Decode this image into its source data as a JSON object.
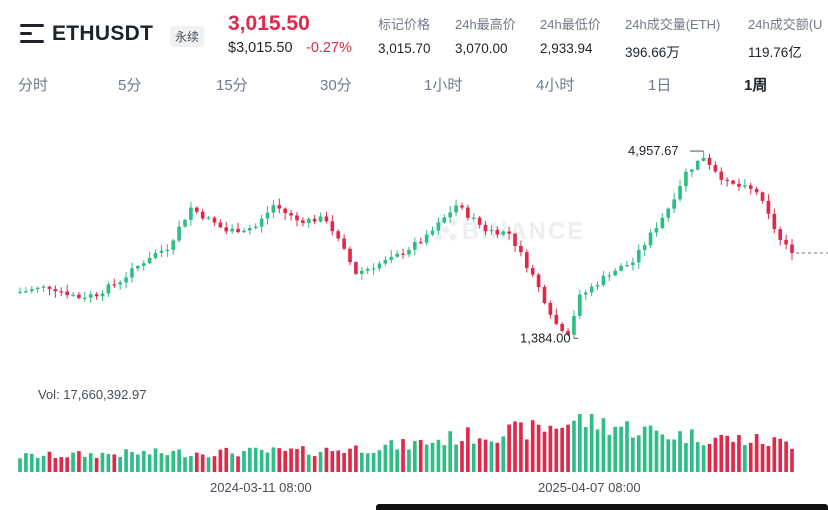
{
  "header": {
    "symbol": "ETHUSDT",
    "contract_badge": "永续",
    "last_price": "3,015.50",
    "usd_price": "$3,015.50",
    "change_pct": "-0.27%",
    "stats": [
      {
        "label": "标记价格",
        "value": "3,015.70"
      },
      {
        "label": "24h最高价",
        "value": "3,070.00"
      },
      {
        "label": "24h最低价",
        "value": "2,933.94"
      },
      {
        "label": "24h成交量(ETH)",
        "value": "396.66万"
      },
      {
        "label": "24h成交额(U",
        "value": "119.76亿"
      }
    ]
  },
  "interval_tabs": [
    "分时",
    "5分",
    "15分",
    "30分",
    "1小时",
    "4小时",
    "1日",
    "1周"
  ],
  "active_tab": "1周",
  "colors": {
    "up": "#2ebd85",
    "down": "#e0294a",
    "text": "#1e2329",
    "muted": "#707a8a"
  },
  "chart_data": {
    "type": "candlestick",
    "symbol": "ETHUSDT",
    "interval": "1周",
    "volume_label": "Vol: 17,660,392.97",
    "max_label": "4,957.67",
    "min_label": "1,384.00",
    "x_ticks": [
      "2024-03-11 08:00",
      "2025-04-07 08:00"
    ],
    "watermark": "BINANCE",
    "ylim": [
      1000,
      5400
    ],
    "anchors": [
      [
        0,
        2300
      ],
      [
        5,
        2390
      ],
      [
        10,
        2200
      ],
      [
        13,
        2260
      ],
      [
        17,
        2500
      ],
      [
        22,
        2950
      ],
      [
        25,
        3120
      ],
      [
        29,
        3850
      ],
      [
        35,
        3420
      ],
      [
        40,
        3500
      ],
      [
        43,
        3900
      ],
      [
        47,
        3620
      ],
      [
        52,
        3640
      ],
      [
        57,
        2650
      ],
      [
        63,
        2900
      ],
      [
        69,
        3300
      ],
      [
        74,
        3900
      ],
      [
        79,
        3450
      ],
      [
        83,
        3380
      ],
      [
        87,
        2600
      ],
      [
        91,
        1700
      ],
      [
        93,
        1550
      ],
      [
        95,
        2200
      ],
      [
        100,
        2650
      ],
      [
        104,
        2850
      ],
      [
        107,
        3350
      ],
      [
        110,
        3850
      ],
      [
        113,
        4500
      ],
      [
        116,
        4800
      ],
      [
        120,
        4300
      ],
      [
        125,
        4150
      ],
      [
        129,
        3250
      ],
      [
        131,
        3015.5
      ]
    ],
    "volume_anchors": [
      [
        0,
        0.3
      ],
      [
        20,
        0.36
      ],
      [
        50,
        0.4
      ],
      [
        66,
        0.52
      ],
      [
        75,
        0.68
      ],
      [
        88,
        0.82
      ],
      [
        95,
        1.0
      ],
      [
        110,
        0.72
      ],
      [
        125,
        0.6
      ],
      [
        131,
        0.55
      ]
    ],
    "current_price": 3015.5
  }
}
